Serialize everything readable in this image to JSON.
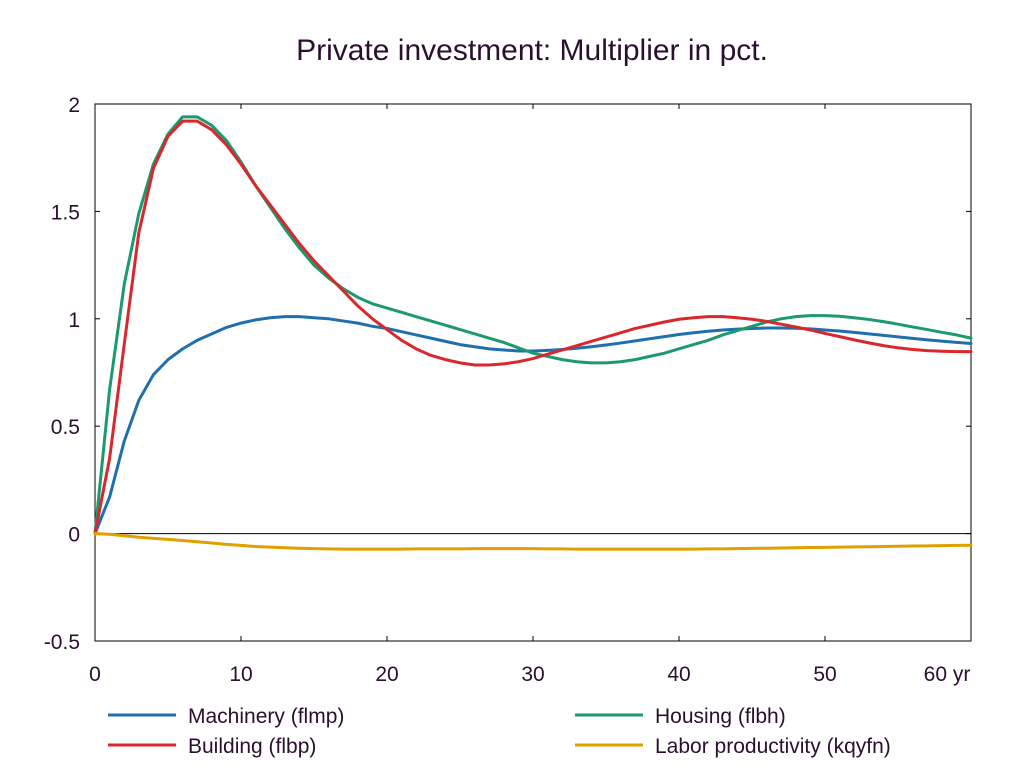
{
  "chart_data": {
    "type": "line",
    "title": "Private investment: Multiplier in pct.",
    "xlabel": "",
    "ylabel": "",
    "x_unit_label": "yr",
    "xlim": [
      0,
      60
    ],
    "ylim": [
      -0.5,
      2
    ],
    "x_ticks": [
      0,
      10,
      20,
      30,
      40,
      50,
      60
    ],
    "x_tick_labels": [
      "0",
      "10",
      "20",
      "30",
      "40",
      "50",
      "60 yr"
    ],
    "y_ticks": [
      -0.5,
      0,
      0.5,
      1,
      1.5,
      2
    ],
    "y_tick_labels": [
      "-0.5",
      "0",
      "0.5",
      "1",
      "1.5",
      "2"
    ],
    "grid": false,
    "zero_line": true,
    "legend_position": "bottom",
    "x": [
      0,
      1,
      2,
      3,
      4,
      5,
      6,
      7,
      8,
      9,
      10,
      11,
      12,
      13,
      14,
      15,
      16,
      17,
      18,
      19,
      20,
      21,
      22,
      23,
      24,
      25,
      26,
      27,
      28,
      29,
      30,
      31,
      32,
      33,
      34,
      35,
      36,
      37,
      38,
      39,
      40,
      41,
      42,
      43,
      44,
      45,
      46,
      47,
      48,
      49,
      50,
      51,
      52,
      53,
      54,
      55,
      56,
      57,
      58,
      59,
      60
    ],
    "series": [
      {
        "name": "Machinery (flmp)",
        "color": "#1f6fae",
        "values": [
          0,
          0.17,
          0.43,
          0.62,
          0.74,
          0.81,
          0.86,
          0.9,
          0.93,
          0.96,
          0.98,
          0.995,
          1.005,
          1.01,
          1.01,
          1.005,
          1.0,
          0.99,
          0.98,
          0.965,
          0.955,
          0.94,
          0.925,
          0.91,
          0.895,
          0.88,
          0.87,
          0.86,
          0.855,
          0.85,
          0.85,
          0.853,
          0.857,
          0.863,
          0.87,
          0.878,
          0.887,
          0.897,
          0.907,
          0.917,
          0.927,
          0.935,
          0.942,
          0.948,
          0.952,
          0.955,
          0.957,
          0.957,
          0.956,
          0.953,
          0.948,
          0.943,
          0.937,
          0.93,
          0.923,
          0.916,
          0.909,
          0.902,
          0.896,
          0.89,
          0.885
        ]
      },
      {
        "name": "Housing (flbh)",
        "color": "#1a9a6e",
        "values": [
          0,
          0.67,
          1.16,
          1.49,
          1.72,
          1.86,
          1.94,
          1.94,
          1.9,
          1.83,
          1.73,
          1.62,
          1.52,
          1.42,
          1.33,
          1.25,
          1.19,
          1.14,
          1.1,
          1.07,
          1.05,
          1.03,
          1.01,
          0.99,
          0.97,
          0.95,
          0.93,
          0.91,
          0.89,
          0.865,
          0.84,
          0.825,
          0.81,
          0.8,
          0.795,
          0.795,
          0.8,
          0.81,
          0.825,
          0.84,
          0.86,
          0.88,
          0.9,
          0.925,
          0.945,
          0.965,
          0.985,
          1.0,
          1.01,
          1.015,
          1.015,
          1.012,
          1.005,
          0.997,
          0.987,
          0.975,
          0.962,
          0.95,
          0.937,
          0.925,
          0.91
        ]
      },
      {
        "name": "Building (flbp)",
        "color": "#d9282b",
        "values": [
          0,
          0.35,
          0.88,
          1.4,
          1.7,
          1.85,
          1.92,
          1.92,
          1.88,
          1.81,
          1.72,
          1.62,
          1.53,
          1.44,
          1.35,
          1.27,
          1.2,
          1.13,
          1.06,
          1.0,
          0.95,
          0.9,
          0.86,
          0.83,
          0.81,
          0.795,
          0.785,
          0.785,
          0.79,
          0.8,
          0.815,
          0.835,
          0.855,
          0.875,
          0.895,
          0.915,
          0.935,
          0.955,
          0.97,
          0.985,
          0.998,
          1.005,
          1.01,
          1.01,
          1.005,
          0.998,
          0.988,
          0.975,
          0.962,
          0.948,
          0.932,
          0.917,
          0.902,
          0.888,
          0.875,
          0.865,
          0.857,
          0.852,
          0.849,
          0.847,
          0.847
        ]
      },
      {
        "name": "Labor productivity (kqyfn)",
        "color": "#e0a100",
        "values": [
          0,
          -0.003,
          -0.01,
          -0.017,
          -0.022,
          -0.027,
          -0.032,
          -0.038,
          -0.044,
          -0.05,
          -0.055,
          -0.06,
          -0.063,
          -0.066,
          -0.068,
          -0.07,
          -0.071,
          -0.072,
          -0.072,
          -0.072,
          -0.072,
          -0.072,
          -0.071,
          -0.071,
          -0.071,
          -0.071,
          -0.07,
          -0.07,
          -0.07,
          -0.07,
          -0.07,
          -0.071,
          -0.071,
          -0.072,
          -0.072,
          -0.072,
          -0.072,
          -0.072,
          -0.072,
          -0.072,
          -0.072,
          -0.072,
          -0.071,
          -0.071,
          -0.07,
          -0.069,
          -0.068,
          -0.067,
          -0.066,
          -0.065,
          -0.064,
          -0.063,
          -0.062,
          -0.061,
          -0.06,
          -0.059,
          -0.058,
          -0.057,
          -0.056,
          -0.055,
          -0.054
        ]
      }
    ],
    "legend_layout": [
      [
        "Machinery (flmp)",
        "Housing (flbh)"
      ],
      [
        "Building (flbp)",
        "Labor productivity (kqyfn)"
      ]
    ]
  }
}
